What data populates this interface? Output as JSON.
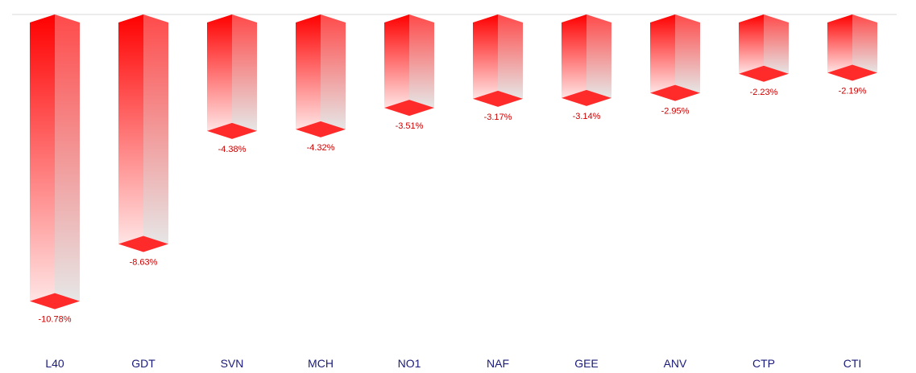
{
  "chart_data": {
    "type": "bar3d",
    "categories": [
      "L40",
      "GDT",
      "SVN",
      "MCH",
      "NO1",
      "NAF",
      "GEE",
      "ANV",
      "CTP",
      "CTI"
    ],
    "values": [
      -10.78,
      -8.63,
      -4.38,
      -4.32,
      -3.51,
      -3.17,
      -3.14,
      -2.95,
      -2.23,
      -2.19
    ],
    "value_labels": [
      "-10.78%",
      "-8.63%",
      "-4.38%",
      "-4.32%",
      "-3.51%",
      "-3.17%",
      "-3.14%",
      "-2.95%",
      "-2.23%",
      "-2.19%"
    ],
    "color": "#ff0000",
    "ylim": [
      -12,
      0
    ]
  }
}
